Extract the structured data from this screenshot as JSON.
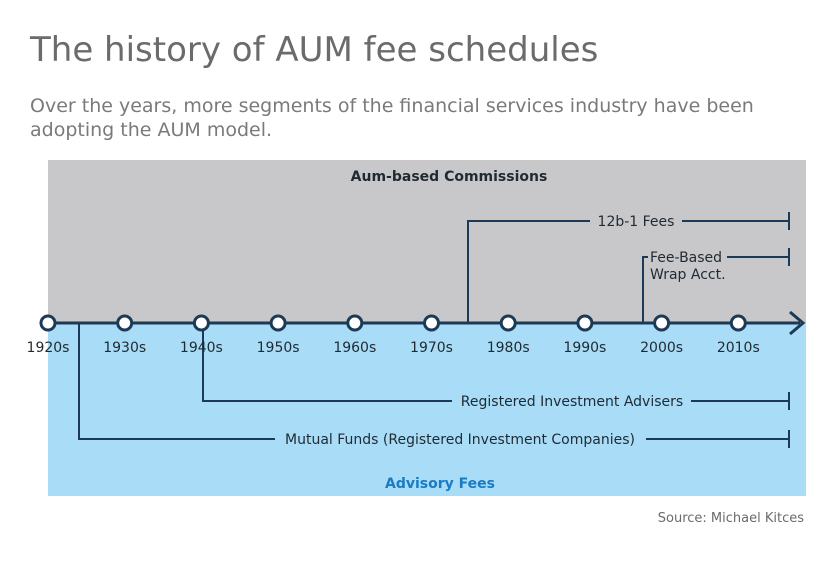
{
  "header": {
    "title": "The history of AUM fee schedules",
    "subtitle": "Over the years, more segments of the financial services industry have been adopting the AUM model."
  },
  "zones": {
    "top_label": "Aum-based Commissions",
    "bottom_label": "Advisory Fees"
  },
  "timeline": {
    "decades": [
      "1920s",
      "1930s",
      "1940s",
      "1950s",
      "1960s",
      "1970s",
      "1980s",
      "1990s",
      "2000s",
      "2010s"
    ]
  },
  "lines": {
    "fee_12b1": "12b-1 Fees",
    "fee_based_line1": "Fee-Based",
    "fee_based_line2": "Wrap Acct.",
    "ria": "Registered Investment Advisers",
    "mutual_funds": "Mutual Funds (Registered Investment Companies)"
  },
  "source": "Source: Michael Kitces",
  "colors": {
    "top_zone": "#c8c8ca",
    "bottom_zone": "#a9dcf7",
    "line": "#1b3a57",
    "advisory_label": "#1a7bc4"
  }
}
